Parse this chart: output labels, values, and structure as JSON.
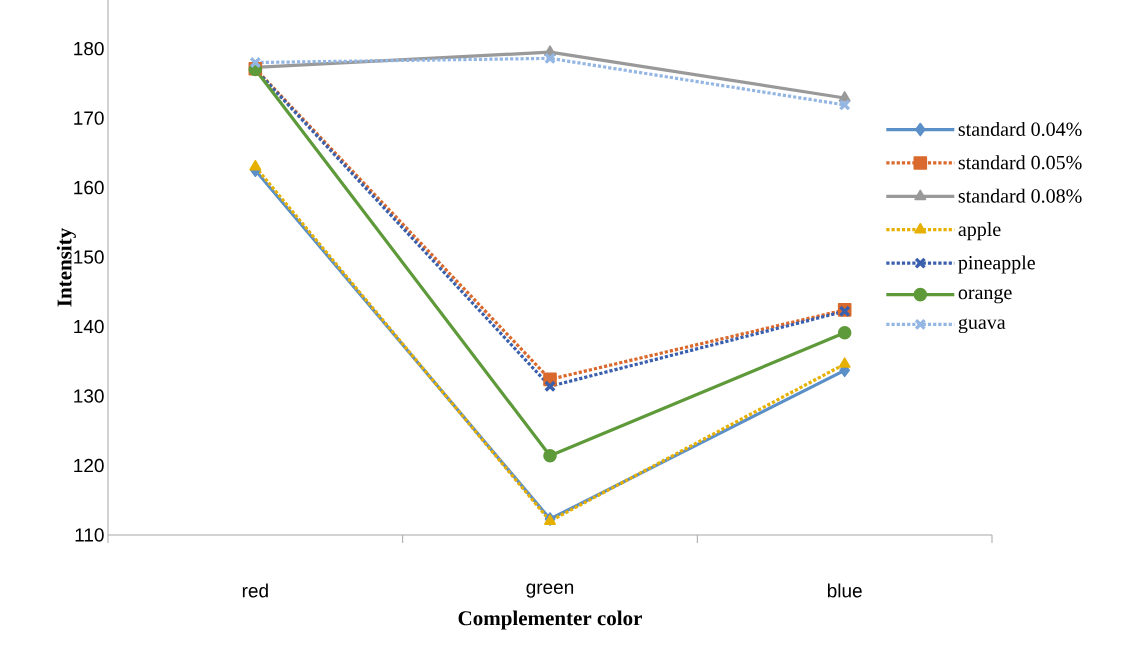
{
  "chart_data": {
    "type": "line",
    "xlabel": "Complementer color",
    "ylabel": "Intensity",
    "categories": [
      "red",
      "green",
      "blue"
    ],
    "ylim": [
      110,
      187
    ],
    "yticks": [
      110,
      120,
      130,
      140,
      150,
      160,
      170,
      180
    ],
    "legend": "right",
    "series": [
      {
        "name": "standard 0.04%",
        "color": "#5b8fc7",
        "values": [
          162.5,
          112.3,
          133.7
        ],
        "line_style": "solid",
        "marker": "diamond"
      },
      {
        "name": "standard 0.05%",
        "color": "#d9692c",
        "values": [
          177.1,
          132.4,
          142.4
        ],
        "line_style": "dotted",
        "marker": "square"
      },
      {
        "name": "standard 0.08%",
        "color": "#999999",
        "values": [
          177.3,
          179.5,
          172.9
        ],
        "line_style": "solid",
        "marker": "triangle"
      },
      {
        "name": "apple",
        "color": "#e6b000",
        "values": [
          163.0,
          112.0,
          134.6
        ],
        "line_style": "dotted",
        "marker": "triangle"
      },
      {
        "name": "pineapple",
        "color": "#3a5fad",
        "values": [
          177.0,
          131.4,
          142.2
        ],
        "line_style": "dotted",
        "marker": "cross"
      },
      {
        "name": "orange",
        "color": "#5e9a3a",
        "values": [
          177.0,
          121.4,
          139.1
        ],
        "line_style": "solid",
        "marker": "circle"
      },
      {
        "name": "guava",
        "color": "#94b6e3",
        "values": [
          178.0,
          178.6,
          171.9
        ],
        "line_style": "dotted",
        "marker": "cross"
      }
    ]
  }
}
